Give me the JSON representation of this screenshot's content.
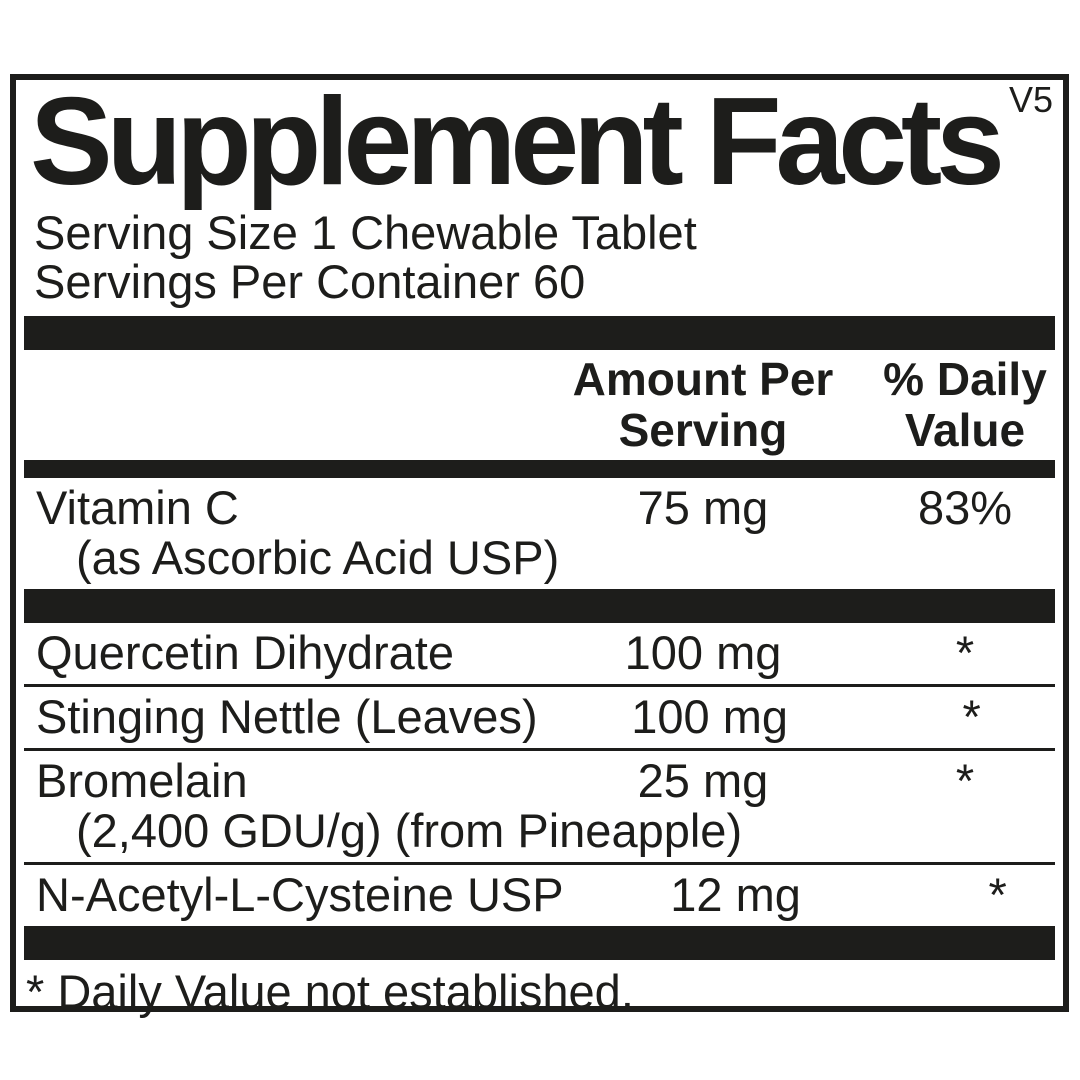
{
  "label": {
    "version": "V5",
    "title": "Supplement Facts",
    "serving_size": "Serving Size 1 Chewable Tablet",
    "servings_per_container": "Servings Per Container 60",
    "columns": {
      "amount_line1": "Amount Per",
      "amount_line2": "Serving",
      "dv_line1": "% Daily",
      "dv_line2": "Value"
    },
    "rows": [
      {
        "name": "Vitamin C",
        "detail": "(as Ascorbic Acid USP)",
        "amount": "75 mg",
        "daily_value": "83%"
      },
      {
        "name": "Quercetin Dihydrate",
        "amount": "100 mg",
        "daily_value": "*"
      },
      {
        "name": "Stinging Nettle (Leaves)",
        "amount": "100 mg",
        "daily_value": "*"
      },
      {
        "name": "Bromelain",
        "detail": "(2,400 GDU/g) (from Pineapple)",
        "amount": "25 mg",
        "daily_value": "*"
      },
      {
        "name": "N-Acetyl-L-Cysteine USP",
        "amount": "12 mg",
        "daily_value": "*"
      }
    ],
    "footnote": "* Daily Value not established.",
    "colors": {
      "ink": "#1d1d1b",
      "background": "#ffffff"
    }
  }
}
